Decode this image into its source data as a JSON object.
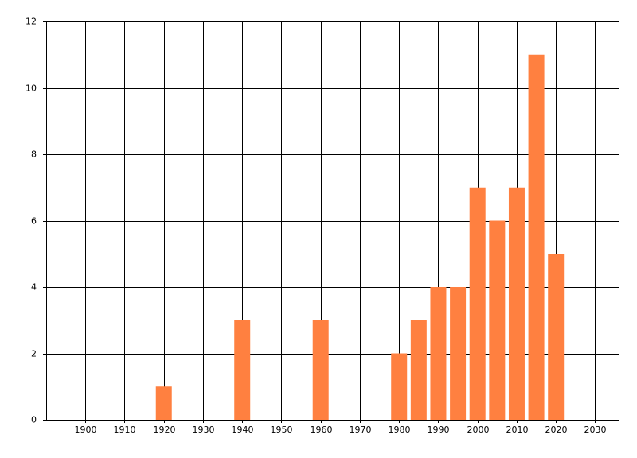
{
  "chart_data": {
    "type": "bar",
    "x": [
      1920,
      1940,
      1960,
      1980,
      1985,
      1990,
      1995,
      2000,
      2005,
      2010,
      2015,
      2020
    ],
    "values": [
      1,
      3,
      3,
      2,
      3,
      4,
      4,
      7,
      6,
      7,
      11,
      5
    ],
    "color": "#ff8040",
    "xlim": [
      1890,
      2036
    ],
    "xticks": [
      1900,
      1910,
      1920,
      1930,
      1940,
      1950,
      1960,
      1970,
      1980,
      1990,
      2000,
      2010,
      2020,
      2030
    ],
    "ylim": [
      0,
      12
    ],
    "yticks": [
      0,
      2,
      4,
      6,
      8,
      10,
      12
    ],
    "grid": true
  }
}
